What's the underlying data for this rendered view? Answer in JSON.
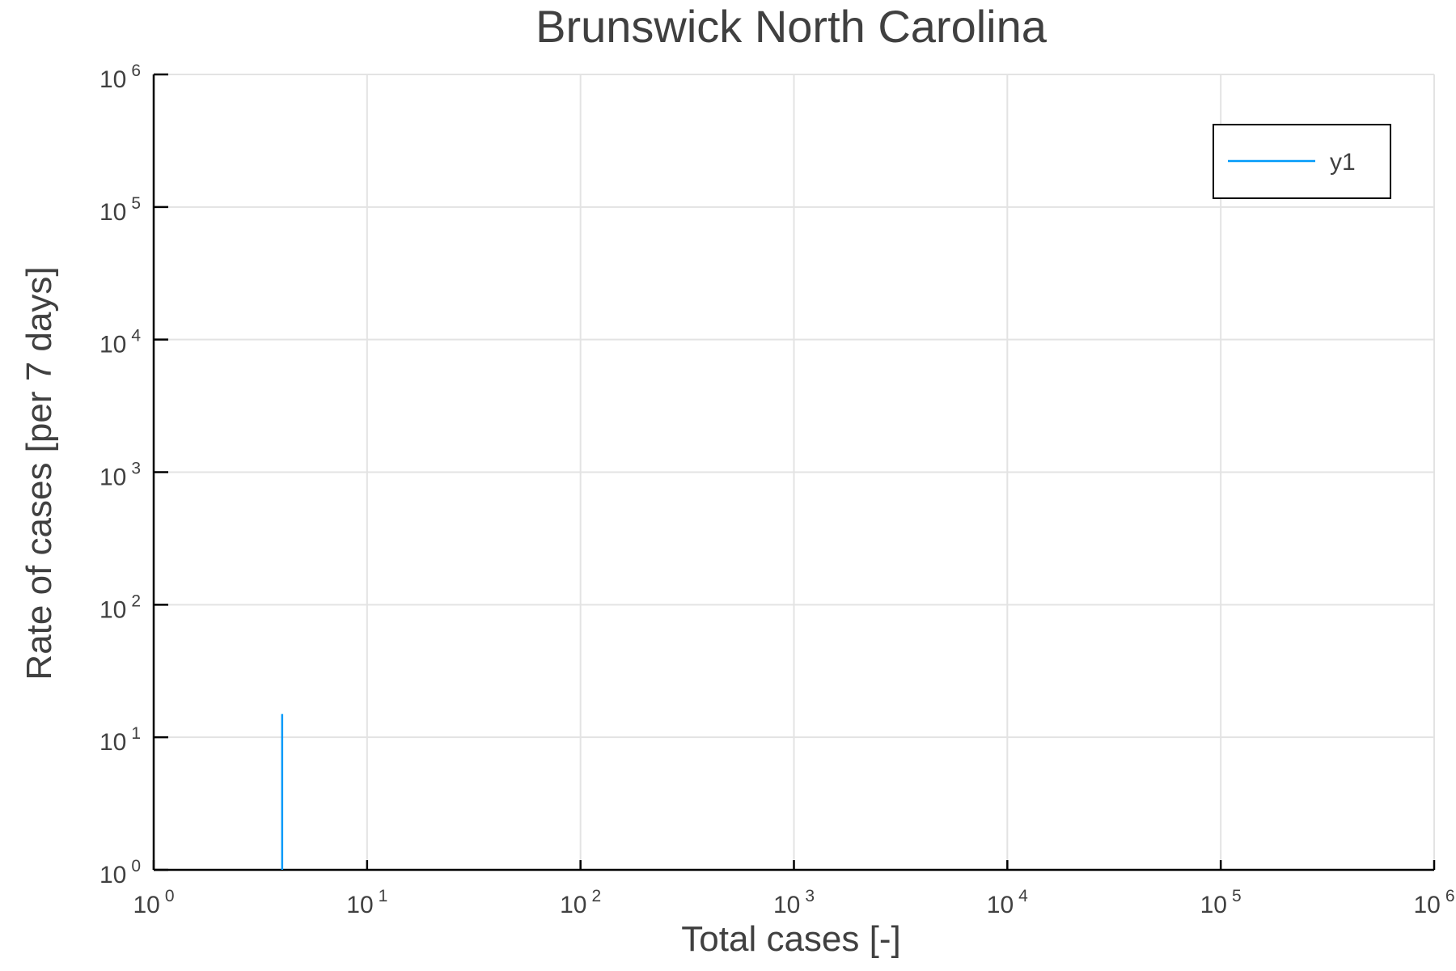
{
  "chart_data": {
    "type": "line",
    "title": "Brunswick North Carolina",
    "xlabel": "Total cases [-]",
    "ylabel": "Rate of cases [per 7 days]",
    "xscale": "log",
    "yscale": "log",
    "xlim": [
      1,
      1000000
    ],
    "ylim": [
      1,
      1000000
    ],
    "grid": true,
    "legend_position": "top-right",
    "xticks": [
      {
        "base": "10",
        "exp": "0"
      },
      {
        "base": "10",
        "exp": "1"
      },
      {
        "base": "10",
        "exp": "2"
      },
      {
        "base": "10",
        "exp": "3"
      },
      {
        "base": "10",
        "exp": "4"
      },
      {
        "base": "10",
        "exp": "5"
      },
      {
        "base": "10",
        "exp": "6"
      }
    ],
    "yticks": [
      {
        "base": "10",
        "exp": "0"
      },
      {
        "base": "10",
        "exp": "1"
      },
      {
        "base": "10",
        "exp": "2"
      },
      {
        "base": "10",
        "exp": "3"
      },
      {
        "base": "10",
        "exp": "4"
      },
      {
        "base": "10",
        "exp": "5"
      },
      {
        "base": "10",
        "exp": "6"
      }
    ],
    "series": [
      {
        "name": "y1",
        "color": "#009af9",
        "x": [
          4,
          4
        ],
        "y": [
          1,
          15
        ]
      }
    ]
  }
}
